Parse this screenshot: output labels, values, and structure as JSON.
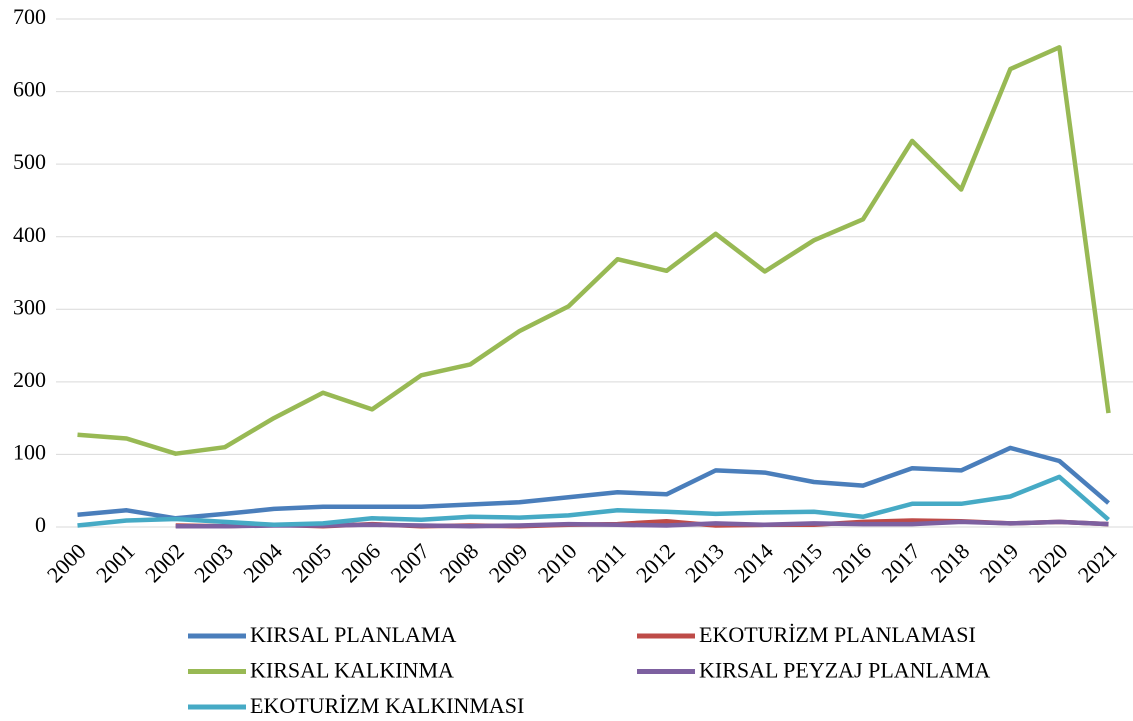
{
  "chart_data": {
    "type": "line",
    "categories": [
      "2000",
      "2001",
      "2002",
      "2003",
      "2004",
      "2005",
      "2006",
      "2007",
      "2008",
      "2009",
      "2010",
      "2011",
      "2012",
      "2013",
      "2014",
      "2015",
      "2016",
      "2017",
      "2018",
      "2019",
      "2020",
      "2021"
    ],
    "series": [
      {
        "name": "KIRSAL PLANLAMA",
        "color": "#4a7ebb",
        "values": [
          17,
          23,
          12,
          18,
          25,
          28,
          28,
          28,
          31,
          34,
          41,
          48,
          45,
          78,
          75,
          62,
          57,
          81,
          78,
          109,
          91,
          33
        ]
      },
      {
        "name": "EKOTURİZM PLANLAMASI",
        "color": "#be4b48",
        "values": [
          null,
          null,
          2,
          1,
          3,
          1,
          4,
          1,
          2,
          1,
          3,
          4,
          8,
          2,
          3,
          3,
          7,
          9,
          8,
          5,
          7,
          4
        ]
      },
      {
        "name": "KIRSAL KALKINMA",
        "color": "#98b954",
        "values": [
          127,
          122,
          101,
          110,
          150,
          185,
          162,
          209,
          224,
          270,
          304,
          369,
          353,
          404,
          352,
          395,
          424,
          532,
          465,
          631,
          661,
          157
        ]
      },
      {
        "name": "KIRSAL PEYZAJ PLANLAMA",
        "color": "#7d60a0",
        "values": [
          null,
          null,
          1,
          1,
          2,
          2,
          3,
          2,
          1,
          2,
          4,
          3,
          2,
          5,
          3,
          5,
          4,
          4,
          7,
          5,
          7,
          4
        ]
      },
      {
        "name": "EKOTURİZM KALKINMASI",
        "color": "#46aac5",
        "values": [
          2,
          9,
          11,
          7,
          3,
          5,
          12,
          10,
          14,
          13,
          16,
          23,
          21,
          18,
          20,
          21,
          14,
          32,
          32,
          42,
          69,
          10
        ]
      }
    ],
    "ylim": [
      0,
      700
    ],
    "yticks": [
      0,
      100,
      200,
      300,
      400,
      500,
      600,
      700
    ],
    "grid": true,
    "legend": "bottom"
  }
}
